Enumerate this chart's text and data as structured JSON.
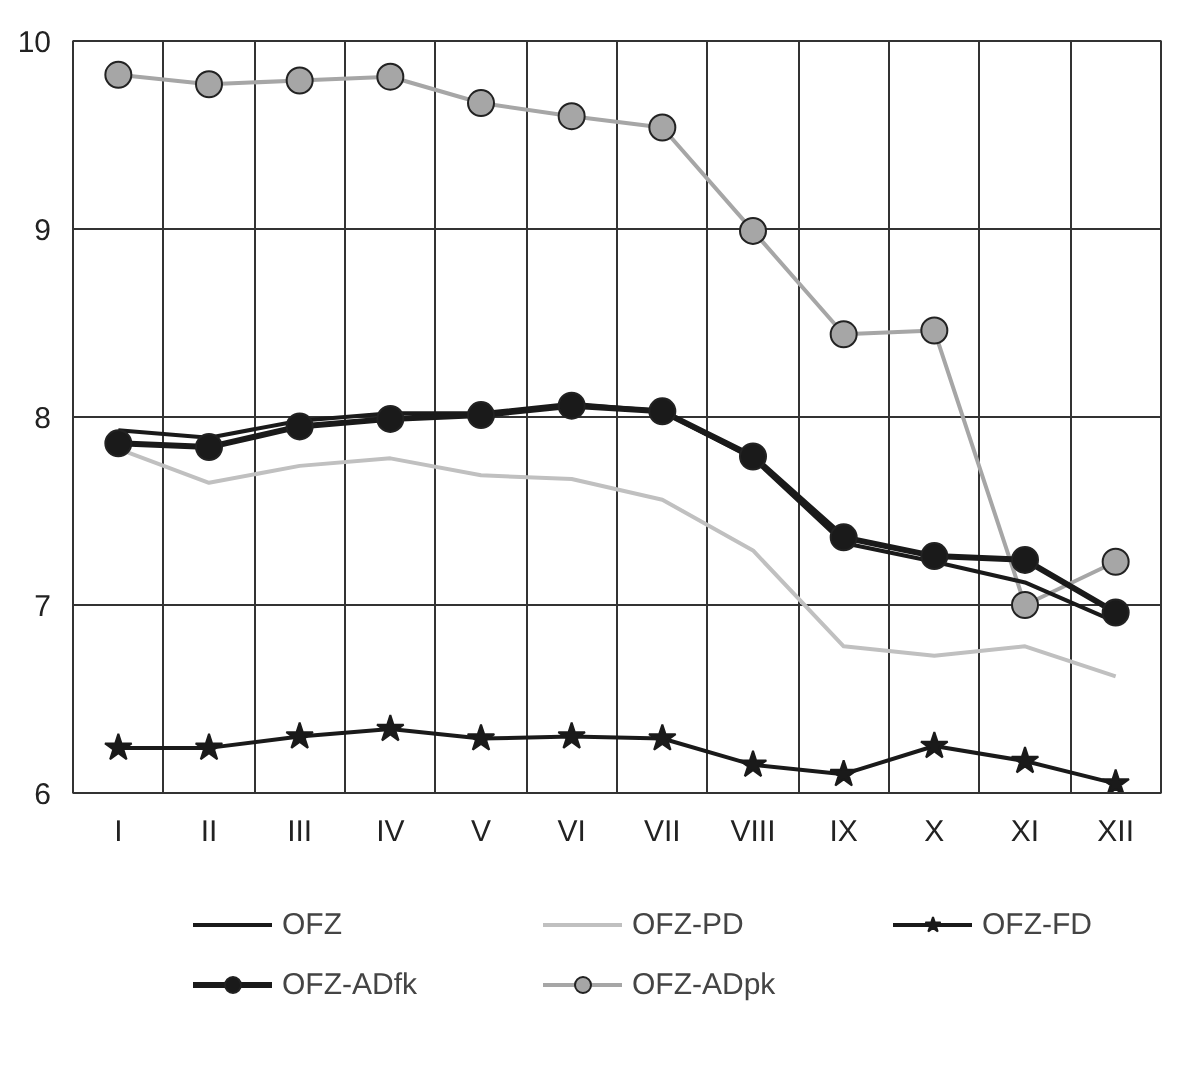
{
  "chart_data": {
    "type": "line",
    "categories": [
      "I",
      "II",
      "III",
      "IV",
      "V",
      "VI",
      "VII",
      "VIII",
      "IX",
      "X",
      "XI",
      "XII"
    ],
    "ylim": [
      6,
      10
    ],
    "yticks": [
      6,
      7,
      8,
      9,
      10
    ],
    "grid": true,
    "legend": "bottom",
    "series": [
      {
        "name": "OFZ",
        "color": "#1a1a1a",
        "marker": "none",
        "values": [
          7.93,
          7.89,
          7.98,
          8.02,
          8.02,
          8.07,
          8.03,
          7.78,
          7.33,
          7.23,
          7.12,
          6.91
        ]
      },
      {
        "name": "OFZ-PD",
        "color": "#c0c0c0",
        "marker": "none",
        "values": [
          7.83,
          7.65,
          7.74,
          7.78,
          7.69,
          7.67,
          7.56,
          7.29,
          6.78,
          6.73,
          6.78,
          6.62
        ]
      },
      {
        "name": "OFZ-FD",
        "color": "#1a1a1a",
        "marker": "star",
        "values": [
          6.24,
          6.24,
          6.3,
          6.34,
          6.29,
          6.3,
          6.29,
          6.15,
          6.1,
          6.25,
          6.17,
          6.05
        ]
      },
      {
        "name": "OFZ-ADfk",
        "color": "#1a1a1a",
        "marker": "circle",
        "values": [
          7.86,
          7.84,
          7.95,
          7.99,
          8.01,
          8.06,
          8.03,
          7.79,
          7.36,
          7.26,
          7.24,
          6.96
        ]
      },
      {
        "name": "OFZ-ADpk",
        "color": "#a6a6a6",
        "marker": "circle",
        "values": [
          9.82,
          9.77,
          9.79,
          9.81,
          9.67,
          9.6,
          9.54,
          8.99,
          8.44,
          8.46,
          7.0,
          7.23
        ]
      }
    ]
  }
}
